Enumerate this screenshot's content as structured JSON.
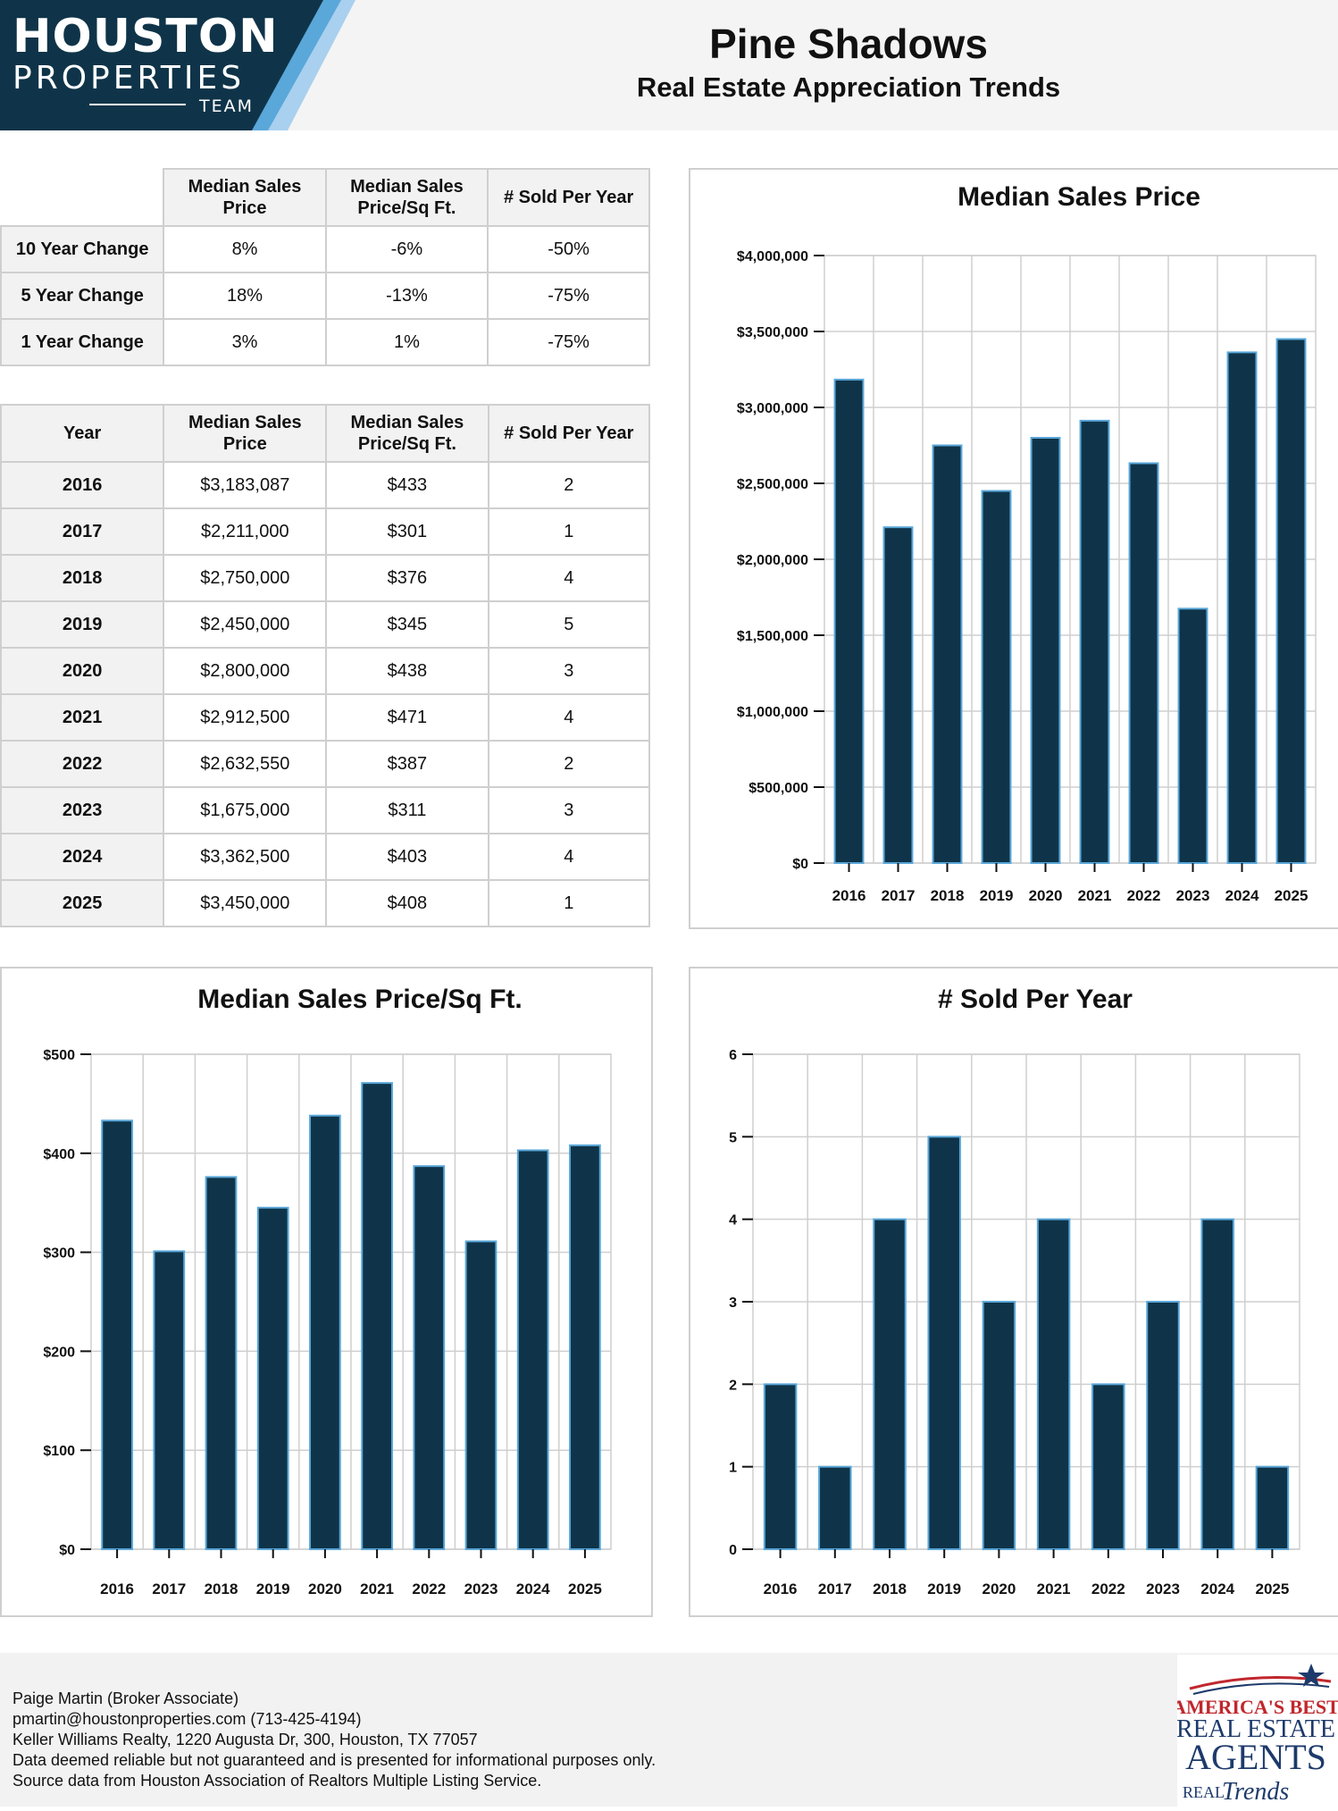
{
  "brand": {
    "line1": "HOUSTON",
    "line2": "PROPERTIES",
    "line3": "TEAM",
    "primary_color": "#0f3449",
    "accent_color": "#5aa7d9"
  },
  "header": {
    "title": "Pine Shadows",
    "subtitle": "Real Estate Appreciation Trends"
  },
  "change_table": {
    "columns": [
      "Median Sales Price",
      "Median Sales Price/Sq Ft.",
      "# Sold Per Year"
    ],
    "rows": [
      {
        "label": "10 Year Change",
        "values": [
          "8%",
          "-6%",
          "-50%"
        ]
      },
      {
        "label": "5 Year Change",
        "values": [
          "18%",
          "-13%",
          "-75%"
        ]
      },
      {
        "label": "1 Year Change",
        "values": [
          "3%",
          "1%",
          "-75%"
        ]
      }
    ]
  },
  "year_table": {
    "columns": [
      "Year",
      "Median Sales Price",
      "Median Sales Price/Sq Ft.",
      "# Sold Per Year"
    ],
    "rows": [
      {
        "year": "2016",
        "price": "$3,183,087",
        "sqft": "$433",
        "sold": "2"
      },
      {
        "year": "2017",
        "price": "$2,211,000",
        "sqft": "$301",
        "sold": "1"
      },
      {
        "year": "2018",
        "price": "$2,750,000",
        "sqft": "$376",
        "sold": "4"
      },
      {
        "year": "2019",
        "price": "$2,450,000",
        "sqft": "$345",
        "sold": "5"
      },
      {
        "year": "2020",
        "price": "$2,800,000",
        "sqft": "$438",
        "sold": "3"
      },
      {
        "year": "2021",
        "price": "$2,912,500",
        "sqft": "$471",
        "sold": "4"
      },
      {
        "year": "2022",
        "price": "$2,632,550",
        "sqft": "$387",
        "sold": "2"
      },
      {
        "year": "2023",
        "price": "$1,675,000",
        "sqft": "$311",
        "sold": "3"
      },
      {
        "year": "2024",
        "price": "$3,362,500",
        "sqft": "$403",
        "sold": "4"
      },
      {
        "year": "2025",
        "price": "$3,450,000",
        "sqft": "$408",
        "sold": "1"
      }
    ]
  },
  "chart_data": [
    {
      "type": "bar",
      "title": "Median Sales Price",
      "categories": [
        "2016",
        "2017",
        "2018",
        "2019",
        "2020",
        "2021",
        "2022",
        "2023",
        "2024",
        "2025"
      ],
      "values": [
        3183087,
        2211000,
        2750000,
        2450000,
        2800000,
        2912500,
        2632550,
        1675000,
        3362500,
        3450000
      ],
      "ylim": [
        0,
        4000000
      ],
      "yticks": [
        0,
        500000,
        1000000,
        1500000,
        2000000,
        2500000,
        3000000,
        3500000,
        4000000
      ],
      "ytick_labels": [
        "$0",
        "$500,000",
        "$1,000,000",
        "$1,500,000",
        "$2,000,000",
        "$2,500,000",
        "$3,000,000",
        "$3,500,000",
        "$4,000,000"
      ],
      "xlabel": "",
      "ylabel": "",
      "grid": true,
      "bar_color": "#0f3449",
      "bar_edge": "#5aa7d9"
    },
    {
      "type": "bar",
      "title": "Median Sales Price/Sq Ft.",
      "categories": [
        "2016",
        "2017",
        "2018",
        "2019",
        "2020",
        "2021",
        "2022",
        "2023",
        "2024",
        "2025"
      ],
      "values": [
        433,
        301,
        376,
        345,
        438,
        471,
        387,
        311,
        403,
        408
      ],
      "ylim": [
        0,
        500
      ],
      "yticks": [
        0,
        100,
        200,
        300,
        400,
        500
      ],
      "ytick_labels": [
        "$0",
        "$100",
        "$200",
        "$300",
        "$400",
        "$500"
      ],
      "xlabel": "",
      "ylabel": "",
      "grid": true,
      "bar_color": "#0f3449",
      "bar_edge": "#5aa7d9"
    },
    {
      "type": "bar",
      "title": "# Sold Per Year",
      "categories": [
        "2016",
        "2017",
        "2018",
        "2019",
        "2020",
        "2021",
        "2022",
        "2023",
        "2024",
        "2025"
      ],
      "values": [
        2,
        1,
        4,
        5,
        3,
        4,
        2,
        3,
        4,
        1
      ],
      "ylim": [
        0,
        6
      ],
      "yticks": [
        0,
        1,
        2,
        3,
        4,
        5,
        6
      ],
      "ytick_labels": [
        "0",
        "1",
        "2",
        "3",
        "4",
        "5",
        "6"
      ],
      "xlabel": "",
      "ylabel": "",
      "grid": true,
      "bar_color": "#0f3449",
      "bar_edge": "#5aa7d9"
    }
  ],
  "footer": {
    "agent": "Paige Martin (Broker Associate)",
    "contact": "pmartin@houstonproperties.com (713-425-4194)",
    "office": "Keller Williams Realty, 1220 Augusta Dr, 300, Houston, TX 77057",
    "disclaimer": "Data deemed reliable but not guaranteed and is presented for informational purposes only.",
    "source": "Source data from Houston Association of Realtors Multiple Listing Service."
  },
  "badge": {
    "line1": "AMERICA'S BEST",
    "line2": "REAL ESTATE",
    "line3": "AGENTS",
    "line4": "REAL",
    "line5": "Trends",
    "color_red": "#c0272d",
    "color_navy": "#1d3a6b"
  }
}
